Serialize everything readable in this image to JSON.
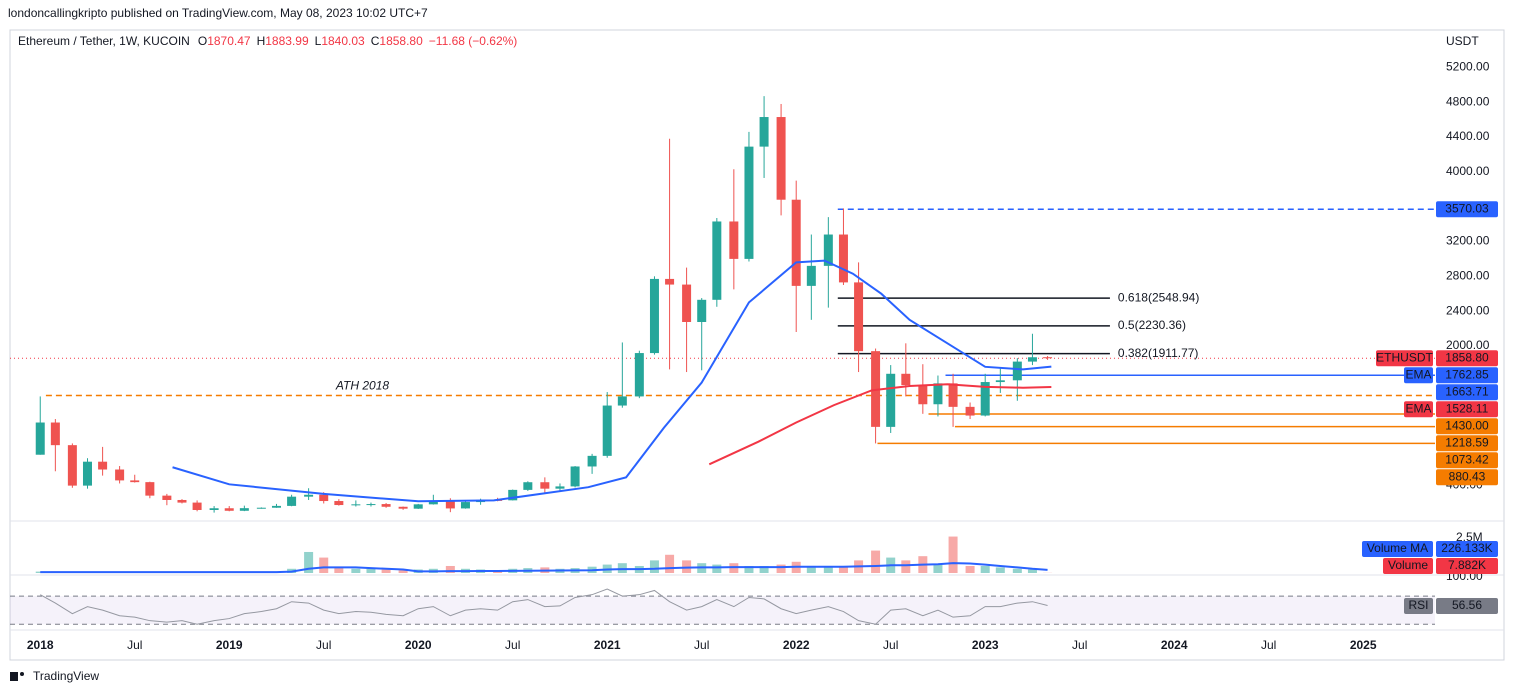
{
  "header": {
    "publisher": "londoncallingkripto published on TradingView.com, May 08, 2023 10:02 UTC+7",
    "symbol": "Ethereum / Tether, 1W, KUCOIN",
    "ohlc": [
      {
        "key": "O",
        "value": "1870.47"
      },
      {
        "key": "H",
        "value": "1883.99"
      },
      {
        "key": "L",
        "value": "1840.03"
      },
      {
        "key": "C",
        "value": "1858.80"
      }
    ],
    "change": "−11.68 (−0.62%)",
    "currency": "USDT",
    "brand": "TradingView"
  },
  "chart_data": {
    "type": "candlestick",
    "up_color": "#26a69a",
    "down_color": "#ef5350",
    "xlim": [
      2017.84,
      2025.38
    ],
    "xticks": [
      2018,
      {
        "value": 2018.5,
        "label": "Jul"
      },
      2019,
      {
        "value": 2019.5,
        "label": "Jul"
      },
      2020,
      {
        "value": 2020.5,
        "label": "Jul"
      },
      2021,
      {
        "value": 2021.5,
        "label": "Jul"
      },
      2022,
      {
        "value": 2022.5,
        "label": "Jul"
      },
      2023,
      {
        "value": 2023.5,
        "label": "Jul"
      },
      2024,
      {
        "value": 2024.5,
        "label": "Jul"
      },
      2025
    ],
    "ylim": [
      0,
      5630
    ],
    "yticks": [
      {
        "value": 400,
        "label": "400.00"
      },
      {
        "value": 2000,
        "label": "2000.00"
      },
      {
        "value": 2400,
        "label": "2400.00"
      },
      {
        "value": 2800,
        "label": "2800.00"
      },
      {
        "value": 3200,
        "label": "3200.00"
      },
      {
        "value": 4000,
        "label": "4000.00"
      },
      {
        "value": 4400,
        "label": "4400.00"
      },
      {
        "value": 4800,
        "label": "4800.00"
      },
      {
        "value": 5200,
        "label": "5200.00"
      }
    ],
    "x": [
      2018.0,
      2018.08,
      2018.17,
      2018.25,
      2018.33,
      2018.42,
      2018.5,
      2018.58,
      2018.67,
      2018.75,
      2018.83,
      2018.92,
      2019.0,
      2019.08,
      2019.17,
      2019.25,
      2019.33,
      2019.42,
      2019.5,
      2019.58,
      2019.67,
      2019.75,
      2019.83,
      2019.92,
      2020.0,
      2020.08,
      2020.17,
      2020.25,
      2020.33,
      2020.42,
      2020.5,
      2020.58,
      2020.67,
      2020.75,
      2020.83,
      2020.92,
      2021.0,
      2021.08,
      2021.17,
      2021.25,
      2021.33,
      2021.42,
      2021.5,
      2021.58,
      2021.67,
      2021.75,
      2021.83,
      2021.92,
      2022.0,
      2022.08,
      2022.17,
      2022.25,
      2022.33,
      2022.42,
      2022.5,
      2022.58,
      2022.67,
      2022.75,
      2022.83,
      2022.92,
      2023.0,
      2023.08,
      2023.17,
      2023.25,
      2023.33
    ],
    "open": [
      750,
      1120,
      860,
      395,
      670,
      580,
      455,
      435,
      280,
      230,
      200,
      115,
      135,
      106,
      136,
      141,
      162,
      268,
      290,
      218,
      172,
      180,
      183,
      152,
      130,
      180,
      218,
      133,
      206,
      231,
      226,
      346,
      434,
      360,
      386,
      615,
      737,
      1315,
      1420,
      1918,
      2770,
      2705,
      2275,
      2530,
      3430,
      3000,
      4290,
      4630,
      3680,
      2690,
      2920,
      3280,
      2730,
      1940,
      1070,
      1680,
      1550,
      1330,
      1570,
      1300,
      1200,
      1585,
      1605,
      1820,
      1870.47
    ],
    "high": [
      1420,
      1160,
      880,
      710,
      840,
      620,
      520,
      440,
      300,
      240,
      225,
      160,
      160,
      165,
      145,
      185,
      290,
      365,
      320,
      240,
      225,
      200,
      195,
      155,
      185,
      290,
      250,
      227,
      245,
      255,
      350,
      445,
      490,
      420,
      620,
      760,
      1470,
      2040,
      1945,
      2800,
      4380,
      2900,
      2550,
      3470,
      4030,
      4460,
      4870,
      4780,
      3900,
      3280,
      3480,
      3580,
      2960,
      1970,
      1780,
      2030,
      1790,
      1660,
      1680,
      1350,
      1680,
      1740,
      1860,
      2140,
      1883.99
    ],
    "low": [
      750,
      560,
      370,
      360,
      510,
      420,
      430,
      250,
      170,
      190,
      100,
      85,
      100,
      102,
      130,
      140,
      158,
      230,
      190,
      165,
      155,
      155,
      140,
      117,
      127,
      177,
      90,
      130,
      175,
      215,
      224,
      334,
      310,
      335,
      374,
      530,
      715,
      1290,
      1400,
      1900,
      1730,
      1700,
      1720,
      2450,
      2650,
      2970,
      3930,
      3500,
      2160,
      2300,
      2440,
      2700,
      1700,
      880,
      1000,
      1420,
      1220,
      1190,
      1070,
      1160,
      1190,
      1460,
      1370,
      1780,
      1840.03
    ],
    "close": [
      1120,
      860,
      395,
      670,
      580,
      455,
      435,
      280,
      230,
      200,
      115,
      135,
      106,
      136,
      141,
      162,
      268,
      290,
      218,
      172,
      180,
      183,
      152,
      130,
      180,
      218,
      133,
      206,
      231,
      226,
      346,
      434,
      360,
      386,
      615,
      737,
      1315,
      1420,
      1918,
      2770,
      2705,
      2275,
      2530,
      3430,
      3000,
      4290,
      4630,
      3680,
      2690,
      2920,
      3280,
      2730,
      1940,
      1070,
      1680,
      1550,
      1330,
      1570,
      1300,
      1200,
      1585,
      1605,
      1820,
      1870,
      1858.8
    ],
    "series": [
      {
        "name": "EMA",
        "color": "#2962ff",
        "x": [
          2018.7,
          2019.0,
          2019.5,
          2020.0,
          2020.4,
          2020.9,
          2021.1,
          2021.3,
          2021.5,
          2021.75,
          2022.0,
          2022.15,
          2022.3,
          2022.45,
          2022.6,
          2022.8,
          2023.0,
          2023.2,
          2023.35
        ],
        "values": [
          606,
          410,
          300,
          215,
          225,
          377,
          490,
          1060,
          1580,
          2500,
          2960,
          2980,
          2830,
          2600,
          2300,
          2030,
          1760,
          1730,
          1762.85
        ]
      },
      {
        "name": "EMA",
        "color": "#f23645",
        "x": [
          2021.54,
          2021.8,
          2022.0,
          2022.2,
          2022.4,
          2022.6,
          2022.8,
          2023.0,
          2023.2,
          2023.35
        ],
        "values": [
          640,
          900,
          1120,
          1320,
          1490,
          1540,
          1560,
          1530,
          1520,
          1528.11
        ]
      }
    ],
    "markers": [
      {
        "value": 3570.03,
        "label": "3570.03",
        "color": "#2962ff",
        "line": "dashed",
        "from": 2022.22
      },
      {
        "tag": "ETHUSDT",
        "value": 1858.8,
        "label": "1858.80",
        "color": "#f23645",
        "line": "dotted"
      },
      {
        "tag": "EMA",
        "value": 1762.85,
        "label": "1762.85",
        "color": "#2962ff"
      },
      {
        "value": 1663.71,
        "label": "1663.71",
        "color": "#2962ff",
        "line": "solid",
        "from": 2022.79
      },
      {
        "tag": "EMA",
        "value": 1528.11,
        "label": "1528.11",
        "color": "#f23645"
      },
      {
        "value": 1430,
        "label": "1430.00",
        "color": "#f57c00",
        "line": "dashed",
        "from": 2018.03,
        "text": "ATH 2018"
      },
      {
        "value": 1218.59,
        "label": "1218.59",
        "color": "#f57c00",
        "line": "solid",
        "from": 2022.7
      },
      {
        "value": 1073.42,
        "label": "1073.42",
        "color": "#f57c00",
        "line": "solid",
        "from": 2022.84
      },
      {
        "value": 880.43,
        "label": "880.43",
        "color": "#f57c00",
        "line": "solid",
        "from": 2022.43
      }
    ],
    "fib": {
      "from": 2022.22,
      "to": 2023.66,
      "levels": [
        {
          "value": 2548.94,
          "label": "0.618(2548.94)"
        },
        {
          "value": 2230.36,
          "label": "0.5(2230.36)"
        },
        {
          "value": 1911.77,
          "label": "0.382(1911.77)"
        }
      ]
    },
    "volume": [
      0.1,
      0.12,
      0.1,
      0.1,
      0.08,
      0.07,
      0.07,
      0.08,
      0.08,
      0.06,
      0.09,
      0.08,
      0.07,
      0.07,
      0.06,
      0.08,
      0.3,
      1.5,
      1.1,
      0.4,
      0.3,
      0.3,
      0.25,
      0.2,
      0.25,
      0.3,
      0.5,
      0.3,
      0.25,
      0.2,
      0.3,
      0.35,
      0.4,
      0.3,
      0.35,
      0.45,
      0.6,
      0.7,
      0.5,
      0.9,
      1.3,
      0.9,
      0.7,
      0.6,
      0.7,
      0.5,
      0.5,
      0.6,
      0.8,
      0.5,
      0.4,
      0.5,
      0.9,
      1.6,
      1.1,
      0.9,
      1.2,
      0.6,
      2.6,
      0.5,
      0.5,
      0.4,
      0.3,
      0.25,
      0.01
    ],
    "volume_ma": [
      0.06,
      0.06,
      0.06,
      0.06,
      0.06,
      0.06,
      0.06,
      0.06,
      0.06,
      0.06,
      0.06,
      0.06,
      0.06,
      0.06,
      0.06,
      0.06,
      0.1,
      0.3,
      0.4,
      0.4,
      0.4,
      0.35,
      0.3,
      0.25,
      0.12,
      0.12,
      0.13,
      0.13,
      0.14,
      0.14,
      0.15,
      0.16,
      0.17,
      0.18,
      0.19,
      0.2,
      0.25,
      0.28,
      0.28,
      0.3,
      0.35,
      0.38,
      0.4,
      0.4,
      0.42,
      0.42,
      0.42,
      0.42,
      0.45,
      0.45,
      0.45,
      0.45,
      0.47,
      0.5,
      0.55,
      0.55,
      0.6,
      0.62,
      0.7,
      0.68,
      0.6,
      0.5,
      0.4,
      0.3,
      0.226133
    ],
    "volume_ylim": [
      0,
      3.21
    ],
    "volume_ticks": [
      {
        "value": 2.5,
        "label": "2.5M"
      }
    ],
    "volume_badges": [
      {
        "name": "Volume MA",
        "label": "226.133K",
        "color": "#2962ff"
      },
      {
        "name": "Volume",
        "label": "7.882K",
        "color": "#f23645"
      }
    ],
    "rsi": [
      72,
      60,
      45,
      55,
      50,
      42,
      40,
      35,
      33,
      35,
      30,
      35,
      38,
      45,
      48,
      52,
      62,
      60,
      50,
      45,
      48,
      47,
      44,
      42,
      52,
      55,
      42,
      50,
      52,
      50,
      62,
      65,
      55,
      56,
      68,
      72,
      80,
      70,
      72,
      78,
      62,
      50,
      55,
      65,
      55,
      68,
      66,
      52,
      45,
      50,
      55,
      48,
      35,
      30,
      50,
      52,
      42,
      50,
      40,
      42,
      55,
      55,
      60,
      62,
      56.56
    ],
    "rsi_ylim": [
      26,
      100
    ],
    "rsi_ticks": [
      {
        "value": 100,
        "label": "100.00"
      }
    ],
    "rsi_band": [
      30,
      70
    ],
    "rsi_badge": {
      "name": "RSI",
      "label": "56.56",
      "color": "#787b86"
    }
  }
}
